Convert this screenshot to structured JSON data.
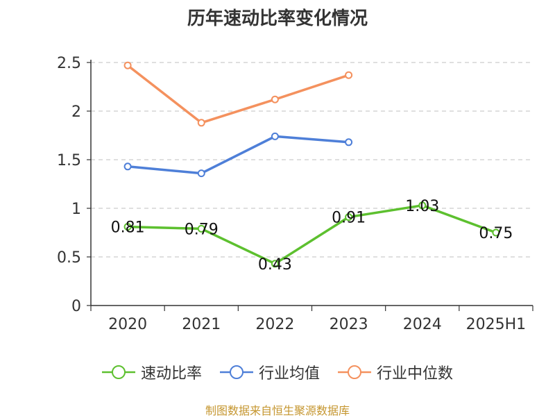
{
  "title": "历年速动比率变化情况",
  "source": "制图数据来自恒生聚源数据库",
  "chart_data": {
    "type": "line",
    "title": "历年速动比率变化情况",
    "categories": [
      "2020",
      "2021",
      "2022",
      "2023",
      "2024",
      "2025H1"
    ],
    "yticks": [
      "0",
      "0.5",
      "1",
      "1.5",
      "2",
      "2.5"
    ],
    "ylim": [
      0,
      2.5
    ],
    "grid": true,
    "legend_position": "bottom",
    "series": [
      {
        "name": "速动比率",
        "color": "#5dc02f",
        "values": [
          0.81,
          0.79,
          0.43,
          0.91,
          1.03,
          0.75
        ],
        "labels": [
          "0.81",
          "0.79",
          "0.43",
          "0.91",
          "1.03",
          "0.75"
        ],
        "show_labels": true
      },
      {
        "name": "行业均值",
        "color": "#4e7fd8",
        "values": [
          1.43,
          1.36,
          1.74,
          1.68,
          null,
          null
        ],
        "show_labels": false
      },
      {
        "name": "行业中位数",
        "color": "#f4915e",
        "values": [
          2.47,
          1.88,
          2.12,
          2.37,
          null,
          null
        ],
        "show_labels": false
      }
    ]
  }
}
